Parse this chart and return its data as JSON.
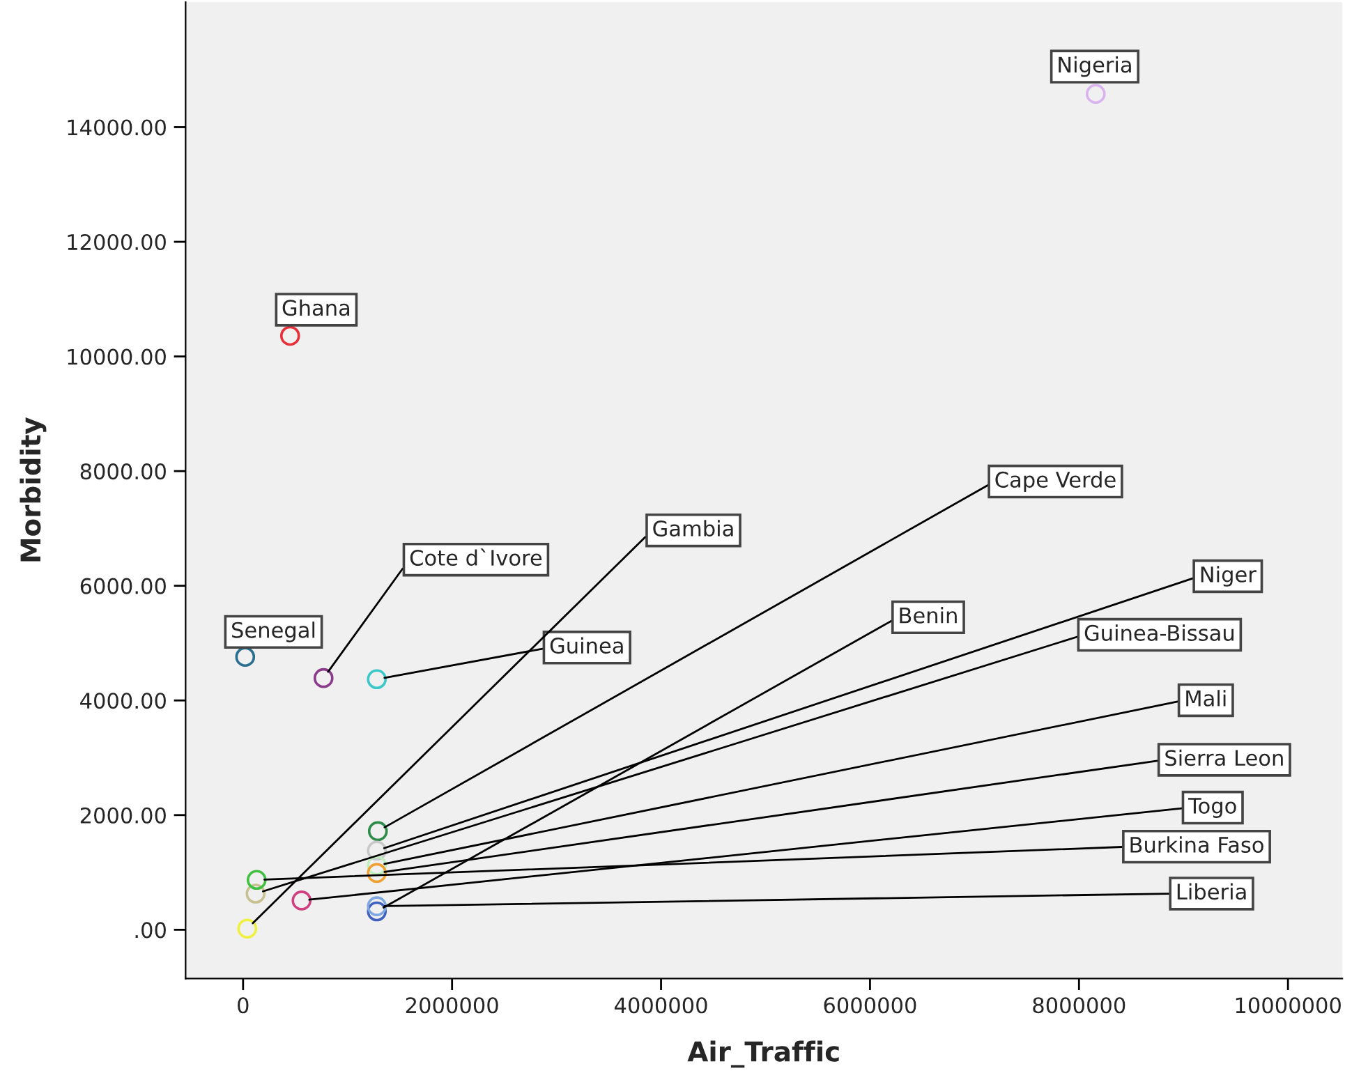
{
  "chart_data": {
    "type": "scatter",
    "xlabel": "Air_Traffic",
    "ylabel": "Morbidity",
    "marker": "circle",
    "grid": false,
    "legend": false,
    "xlim": [
      -550000,
      10520000
    ],
    "ylim": [
      -850,
      16180
    ],
    "xticks": [
      0,
      2000000,
      4000000,
      6000000,
      8000000,
      10000000
    ],
    "yticks": [
      {
        "value": 0,
        "label": ".00"
      },
      {
        "value": 2000,
        "label": "2000.00"
      },
      {
        "value": 4000,
        "label": "4000.00"
      },
      {
        "value": 6000,
        "label": "6000.00"
      },
      {
        "value": 8000,
        "label": "8000.00"
      },
      {
        "value": 10000,
        "label": "10000.00"
      },
      {
        "value": 12000,
        "label": "12000.00"
      },
      {
        "value": 14000,
        "label": "14000.00"
      }
    ],
    "series": [
      {
        "name": "Nigeria",
        "color": "#d9b3f0",
        "x": [
          8160000
        ],
        "values": [
          14580
        ]
      },
      {
        "name": "Ghana",
        "color": "#e8303a",
        "x": [
          450000
        ],
        "values": [
          10360
        ]
      },
      {
        "name": "Senegal",
        "color": "#2a6f8f",
        "x": [
          20000
        ],
        "values": [
          4760
        ]
      },
      {
        "name": "Cote d`Ivore",
        "color": "#8b3a8b",
        "x": [
          770000
        ],
        "values": [
          4390
        ]
      },
      {
        "name": "Guinea",
        "color": "#3cc8c8",
        "x": [
          1280000
        ],
        "values": [
          4370
        ]
      },
      {
        "name": "Gambia",
        "color": "#f0f040",
        "x": [
          40000
        ],
        "values": [
          20
        ]
      },
      {
        "name": "Cape Verde",
        "color": "#2e8b4a",
        "x": [
          1290000
        ],
        "values": [
          1720
        ]
      },
      {
        "name": "Benin",
        "color": "#4060c0",
        "x": [
          1280000
        ],
        "values": [
          320
        ]
      },
      {
        "name": "Niger",
        "color": "#c8c8c8",
        "x": [
          1280000
        ],
        "values": [
          1380
        ]
      },
      {
        "name": "Guinea-Bissau",
        "color": "#c8c090",
        "x": [
          120000
        ],
        "values": [
          630
        ]
      },
      {
        "name": "Mali",
        "color": "#c0f0c0",
        "x": [
          1280000
        ],
        "values": [
          1120
        ]
      },
      {
        "name": "Sierra Leon",
        "color": "#f0a030",
        "x": [
          1280000
        ],
        "values": [
          990
        ]
      },
      {
        "name": "Togo",
        "color": "#d04080",
        "x": [
          560000
        ],
        "values": [
          510
        ]
      },
      {
        "name": "Burkina Faso",
        "color": "#40c040",
        "x": [
          130000
        ],
        "values": [
          870
        ]
      },
      {
        "name": "Liberia",
        "color": "#80a8e0",
        "x": [
          1280000
        ],
        "values": [
          410
        ]
      }
    ]
  }
}
